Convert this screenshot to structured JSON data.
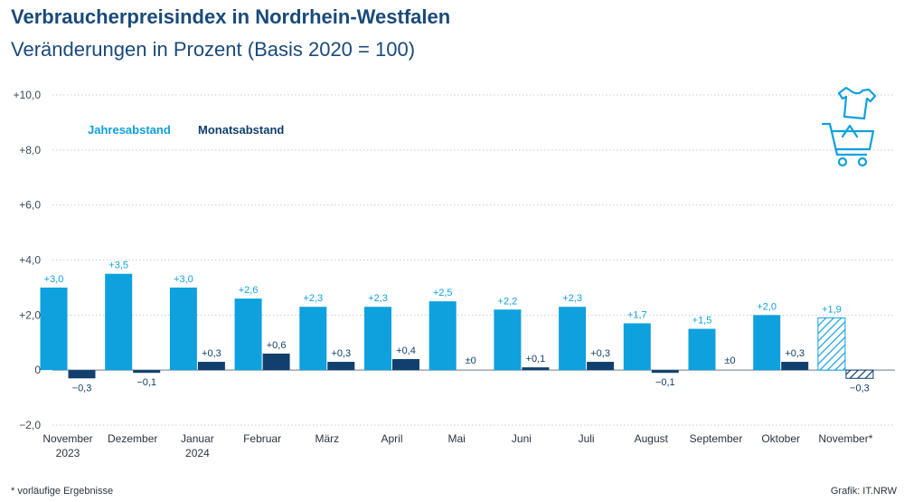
{
  "header": {
    "title": "Verbraucherpreisindex in Nordrhein-Westfalen",
    "subtitle": "Veränderungen in Prozent (Basis 2020 = 100)"
  },
  "footer": {
    "footnote": "*   vorläufige Ergebnisse",
    "source": "Grafik: IT.NRW"
  },
  "icons": {
    "shopping": "shopping-cart-shirt-icon"
  },
  "colors": {
    "jahres": "#0fa0de",
    "monats": "#11406e",
    "grid": "#c8ccd0",
    "axis": "#6e7a86"
  },
  "chart_data": {
    "type": "bar",
    "ylim": [
      -2,
      10
    ],
    "yticks": [
      {
        "v": -2,
        "label": "−2,0"
      },
      {
        "v": 0,
        "label": "0"
      },
      {
        "v": 2,
        "label": "+2,0"
      },
      {
        "v": 4,
        "label": "+4,0"
      },
      {
        "v": 6,
        "label": "+6,0"
      },
      {
        "v": 8,
        "label": "+8,0"
      },
      {
        "v": 10,
        "label": "+10,0"
      }
    ],
    "grid": true,
    "legend_position": "top-left",
    "categories": [
      [
        "November",
        "2023"
      ],
      [
        "Dezember"
      ],
      [
        "Januar",
        "2024"
      ],
      [
        "Februar"
      ],
      [
        "März"
      ],
      [
        "April"
      ],
      [
        "Mai"
      ],
      [
        "Juni"
      ],
      [
        "Juli"
      ],
      [
        "August"
      ],
      [
        "September"
      ],
      [
        "Oktober"
      ],
      [
        "November*"
      ]
    ],
    "provisional_index": 12,
    "series": [
      {
        "name": "Jahresabstand",
        "values": [
          3.0,
          3.5,
          3.0,
          2.6,
          2.3,
          2.3,
          2.5,
          2.2,
          2.3,
          1.7,
          1.5,
          2.0,
          1.9
        ],
        "labels": [
          "+3,0",
          "+3,5",
          "+3,0",
          "+2,6",
          "+2,3",
          "+2,3",
          "+2,5",
          "+2,2",
          "+2,3",
          "+1,7",
          "+1,5",
          "+2,0",
          "+1,9"
        ]
      },
      {
        "name": "Monatsabstand",
        "values": [
          -0.3,
          -0.1,
          0.3,
          0.6,
          0.3,
          0.4,
          0.0,
          0.1,
          0.3,
          -0.1,
          0.0,
          0.3,
          -0.3
        ],
        "labels": [
          "−0,3",
          "−0,1",
          "+0,3",
          "+0,6",
          "+0,3",
          "+0,4",
          "±0",
          "+0,1",
          "+0,3",
          "−0,1",
          "±0",
          "+0,3",
          "−0,3"
        ]
      }
    ]
  }
}
